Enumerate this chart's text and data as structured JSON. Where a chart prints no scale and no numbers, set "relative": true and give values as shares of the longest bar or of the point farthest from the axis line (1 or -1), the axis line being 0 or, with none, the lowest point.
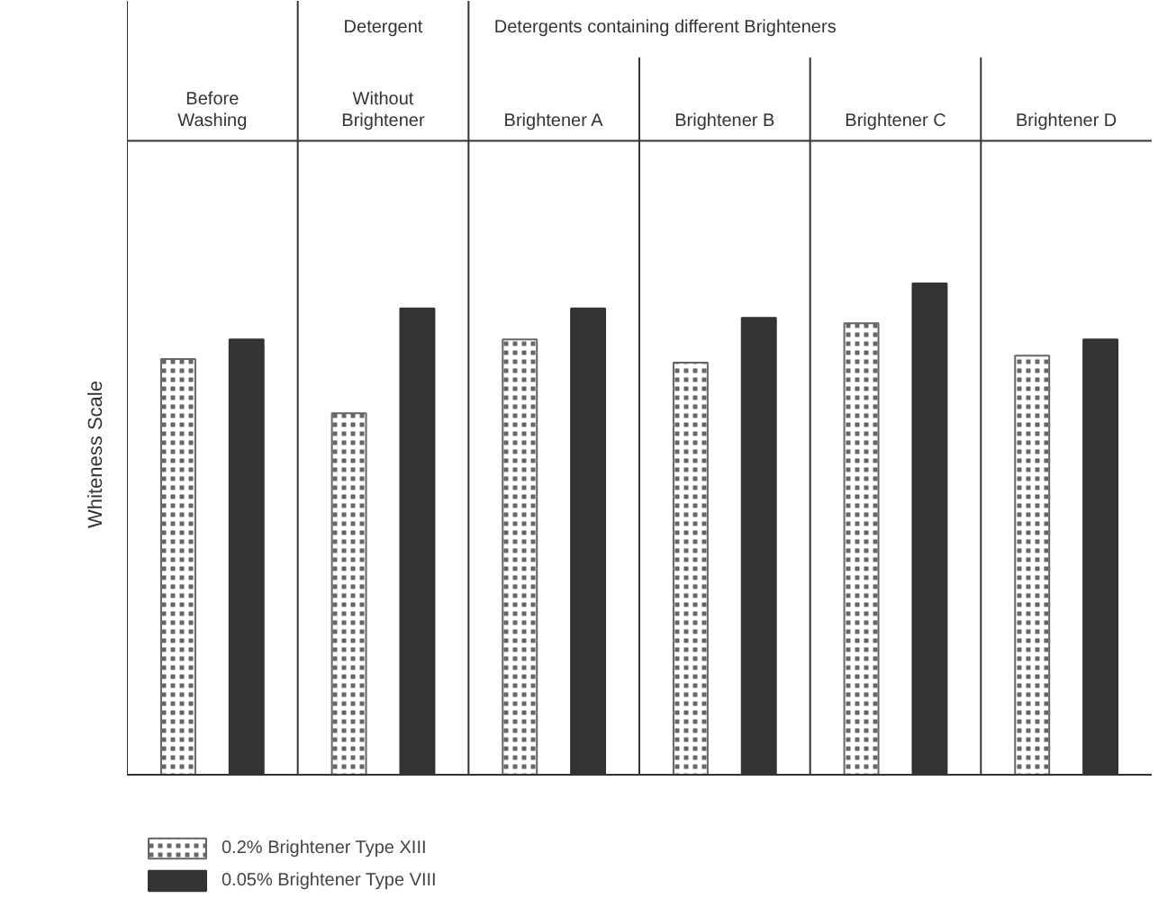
{
  "chart_data": {
    "type": "bar",
    "relative": true,
    "ylabel": "Whiteness Scale",
    "categories": [
      "Before\nWashing",
      "Without\nBrightener",
      "Brightener A",
      "Brightener B",
      "Brightener C",
      "Brightener D"
    ],
    "annotations": [
      "Detergent",
      "Detergents containing different Brighteners"
    ],
    "legend": "bottom left",
    "grid": false,
    "series": [
      {
        "name": "0.2% Brightener Type XIII",
        "color": "#666666",
        "values": [
          0.846,
          0.736,
          0.886,
          0.839,
          0.919,
          0.853
        ]
      },
      {
        "name": "0.05% Brightener Type VIII",
        "color": "#333333",
        "values": [
          0.886,
          0.949,
          0.949,
          0.93,
          1,
          0.886
        ]
      }
    ]
  }
}
